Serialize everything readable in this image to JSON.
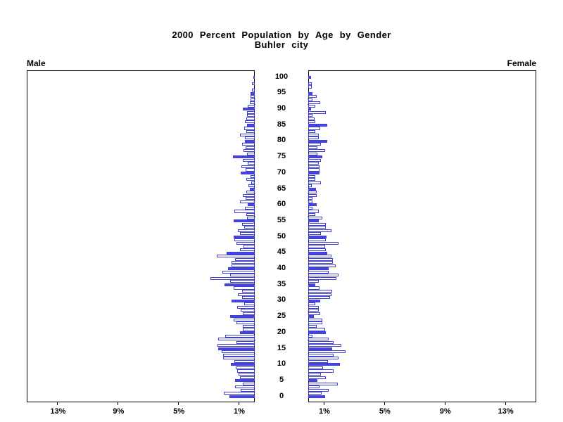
{
  "header": {
    "title": "2000 Percent Population by Age by Gender",
    "subtitle": "Buhler city"
  },
  "panels": {
    "left_label": "Male",
    "right_label": "Female"
  },
  "chart_data": {
    "type": "bar",
    "variant": "population-pyramid",
    "title": "2000 Percent Population by Age by Gender",
    "subtitle": "Buhler city",
    "orientation": "horizontal back-to-back",
    "x_axis": {
      "unit": "percent of population",
      "max_pct": 15,
      "tick_values": [
        1,
        5,
        9,
        13
      ],
      "left_tick_labels": [
        "13%",
        "9%",
        "5%",
        "1%"
      ],
      "right_tick_labels": [
        "1%",
        "5%",
        "9%",
        "13%"
      ]
    },
    "y_axis": {
      "unit": "single year of age",
      "min": 0,
      "max": 100,
      "tick_step": 5,
      "tick_labels": [
        "100",
        "95",
        "90",
        "85",
        "80",
        "75",
        "70",
        "65",
        "60",
        "55",
        "50",
        "45",
        "40",
        "35",
        "30",
        "25",
        "20",
        "15",
        "10",
        "5",
        "0"
      ]
    },
    "highlight_every": 5,
    "series": [
      {
        "name": "Male",
        "side": "left",
        "values_pct_by_age_0_to_100": [
          1.7,
          2.05,
          0.95,
          1.3,
          0.8,
          1.3,
          1.0,
          1.05,
          1.15,
          1.25,
          1.6,
          1.35,
          2.1,
          2.1,
          2.2,
          2.4,
          2.45,
          1.2,
          2.4,
          1.95,
          1.0,
          0.8,
          0.8,
          1.2,
          1.4,
          1.65,
          0.8,
          0.95,
          1.15,
          0.7,
          1.55,
          0.85,
          1.1,
          0.85,
          1.4,
          2.0,
          1.65,
          2.95,
          1.65,
          2.15,
          1.75,
          1.55,
          1.55,
          1.3,
          2.5,
          1.85,
          1.0,
          0.75,
          1.2,
          1.35,
          1.4,
          1.0,
          1.1,
          0.7,
          0.85,
          1.4,
          0.5,
          0.55,
          1.35,
          0.65,
          0.45,
          1.0,
          0.6,
          0.8,
          0.55,
          0.35,
          0.4,
          0.25,
          0.55,
          0.3,
          0.95,
          0.6,
          0.9,
          0.45,
          0.8,
          1.45,
          0.5,
          0.75,
          0.6,
          0.85,
          0.65,
          0.65,
          1.0,
          0.55,
          0.7,
          0.5,
          0.65,
          0.55,
          0.5,
          0.5,
          0.8,
          0.45,
          0.35,
          0.3,
          0.3,
          0.3,
          0.2,
          0.0,
          0.2,
          0.0,
          0.1
        ]
      },
      {
        "name": "Female",
        "side": "right",
        "values_pct_by_age_0_to_100": [
          1.1,
          0.9,
          1.35,
          0.75,
          1.95,
          0.6,
          1.15,
          0.85,
          1.7,
          1.0,
          2.1,
          1.3,
          2.0,
          1.7,
          2.45,
          1.6,
          2.2,
          1.7,
          1.35,
          0.3,
          1.15,
          1.1,
          0.55,
          0.95,
          0.95,
          0.35,
          0.8,
          0.7,
          0.7,
          0.45,
          0.8,
          1.45,
          1.55,
          1.6,
          0.75,
          0.45,
          0.7,
          1.85,
          2.0,
          1.35,
          1.35,
          1.8,
          1.65,
          1.65,
          1.55,
          1.25,
          1.15,
          1.1,
          2.0,
          1.15,
          1.2,
          0.85,
          1.55,
          1.15,
          1.15,
          0.7,
          0.95,
          0.45,
          0.7,
          0.3,
          0.55,
          0.3,
          0.3,
          0.55,
          0.55,
          0.5,
          0.25,
          0.85,
          0.45,
          0.45,
          0.75,
          0.75,
          0.75,
          0.7,
          0.85,
          0.95,
          0.6,
          1.1,
          0.6,
          0.85,
          1.25,
          0.7,
          0.7,
          0.45,
          0.8,
          1.25,
          0.45,
          0.4,
          0.3,
          1.15,
          0.2,
          0.45,
          0.8,
          0.3,
          0.55,
          0.3,
          0.0,
          0.25,
          0.25,
          0.0,
          0.2
        ]
      }
    ],
    "colors": {
      "bar_outline": "#3f3fd8",
      "bar_highlight_fill": "#4646de",
      "bar_plain_fill": "#ffffff",
      "axis": "#000000",
      "background": "#ffffff"
    },
    "legend": "none"
  }
}
